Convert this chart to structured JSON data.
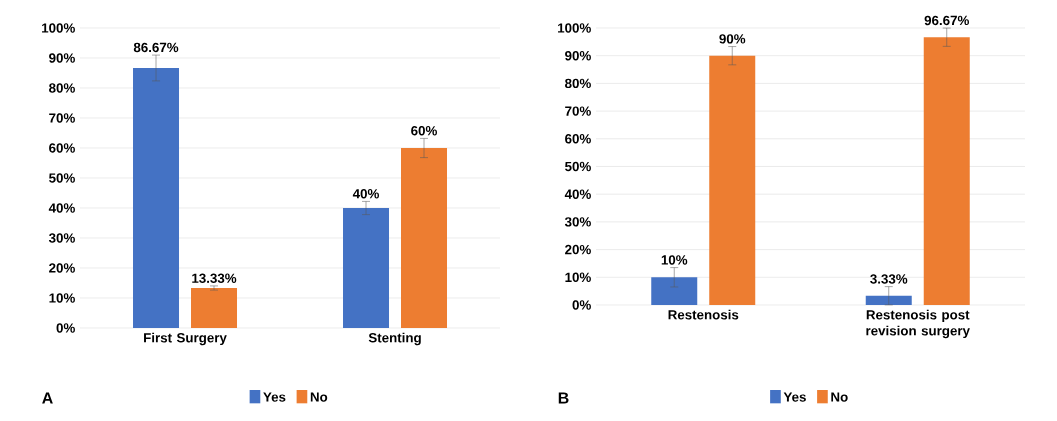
{
  "chart_data": [
    {
      "type": "bar",
      "categories": [
        "First Surgery",
        "Stenting"
      ],
      "series": [
        {
          "name": "Yes",
          "color": "#4472c4",
          "values": [
            86.67,
            40
          ],
          "errors": [
            4.3,
            2.2
          ],
          "value_labels": [
            "86.67%",
            "40%"
          ]
        },
        {
          "name": "No",
          "color": "#ed7d31",
          "values": [
            13.33,
            60
          ],
          "errors": [
            0.7,
            3.2
          ],
          "value_labels": [
            "13.33%",
            "60%"
          ]
        }
      ],
      "ylim": [
        0,
        100
      ],
      "yticks": [
        {
          "value": 0,
          "label": "0%"
        },
        {
          "value": 10,
          "label": "10%"
        },
        {
          "value": 20,
          "label": "20%"
        },
        {
          "value": 30,
          "label": "30%"
        },
        {
          "value": 40,
          "label": "40%"
        },
        {
          "value": 50,
          "label": "50%"
        },
        {
          "value": 60,
          "label": "60%"
        },
        {
          "value": 70,
          "label": "70%"
        },
        {
          "value": 80,
          "label": "80%"
        },
        {
          "value": 90,
          "label": "90%"
        },
        {
          "value": 100,
          "label": "100%"
        }
      ],
      "grid": "y",
      "legend": "bottom",
      "annotations": [
        "A"
      ]
    },
    {
      "type": "bar",
      "categories": [
        "Restenosis",
        "Restenosis post revision surgery"
      ],
      "series": [
        {
          "name": "Yes",
          "color": "#4472c4",
          "values": [
            10,
            3.33
          ],
          "errors": [
            3.5,
            3.3
          ],
          "value_labels": [
            "10%",
            "3.33%"
          ]
        },
        {
          "name": "No",
          "color": "#ed7d31",
          "values": [
            90,
            96.67
          ],
          "errors": [
            3.3,
            3.3
          ],
          "value_labels": [
            "90%",
            "96.67%"
          ]
        }
      ],
      "ylim": [
        0,
        100
      ],
      "yticks": [
        {
          "value": 0,
          "label": "0%"
        },
        {
          "value": 10,
          "label": "10%"
        },
        {
          "value": 20,
          "label": "20%"
        },
        {
          "value": 30,
          "label": "30%"
        },
        {
          "value": 40,
          "label": "40%"
        },
        {
          "value": 50,
          "label": "50%"
        },
        {
          "value": 60,
          "label": "60%"
        },
        {
          "value": 70,
          "label": "70%"
        },
        {
          "value": 80,
          "label": "80%"
        },
        {
          "value": 90,
          "label": "90%"
        },
        {
          "value": 100,
          "label": "100%"
        }
      ],
      "grid": "y",
      "legend": "bottom",
      "annotations": [
        "B"
      ]
    }
  ]
}
